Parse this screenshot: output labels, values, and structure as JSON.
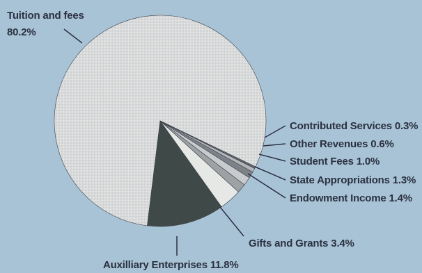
{
  "chart_data": {
    "type": "pie",
    "title": "",
    "slices": [
      {
        "label": "Tuition and fees",
        "pct_text": "80.2%",
        "value": 80.2,
        "color": "#dcdedf"
      },
      {
        "label": "Auxilliary Enterprises",
        "pct_text": "11.8%",
        "value": 11.8,
        "color": "#3f4a48"
      },
      {
        "label": "Gifts and Grants",
        "pct_text": "3.4%",
        "value": 3.4,
        "color": "#e6e8e6"
      },
      {
        "label": "Endowment Income",
        "pct_text": "1.4%",
        "value": 1.4,
        "color": "#9ea2a5"
      },
      {
        "label": "State Appropriations",
        "pct_text": "1.3%",
        "value": 1.3,
        "color": "#c8cbcd"
      },
      {
        "label": "Student Fees",
        "pct_text": "1.0%",
        "value": 1.0,
        "color": "#7c8287"
      },
      {
        "label": "Other Revenues",
        "pct_text": "0.6%",
        "value": 0.6,
        "color": "#b3b7ba"
      },
      {
        "label": "Contributed Services",
        "pct_text": "0.3%",
        "value": 0.3,
        "color": "#5e6469"
      }
    ],
    "legend": "none",
    "colors": {
      "background": "#a9c3d6",
      "text": "#2a3140"
    }
  }
}
